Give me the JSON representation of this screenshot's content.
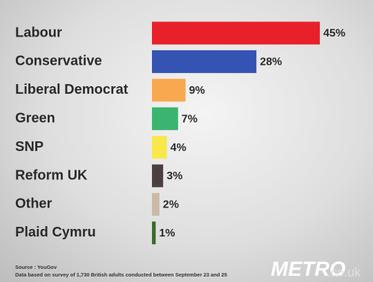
{
  "chart_data": {
    "type": "hbar",
    "categories": [
      "Labour",
      "Conservative",
      "Liberal Democrat",
      "Green",
      "SNP",
      "Reform UK",
      "Other",
      "Plaid Cymru"
    ],
    "values": [
      45,
      28,
      9,
      7,
      4,
      3,
      2,
      1
    ],
    "value_labels": [
      "45%",
      "28%",
      "9%",
      "7%",
      "4%",
      "3%",
      "2%",
      "1%"
    ],
    "colors": [
      "#e8202a",
      "#3453b2",
      "#f9a850",
      "#3bb46f",
      "#f8e84b",
      "#4a403f",
      "#cbb9a8",
      "#3c6a2c"
    ]
  },
  "source": "Source : YouGov",
  "note": "Data based on survey of 1,730 British adults conducted between September 23 and 25",
  "logo": {
    "brand": "METRO",
    "suffix": ".co.uk"
  }
}
